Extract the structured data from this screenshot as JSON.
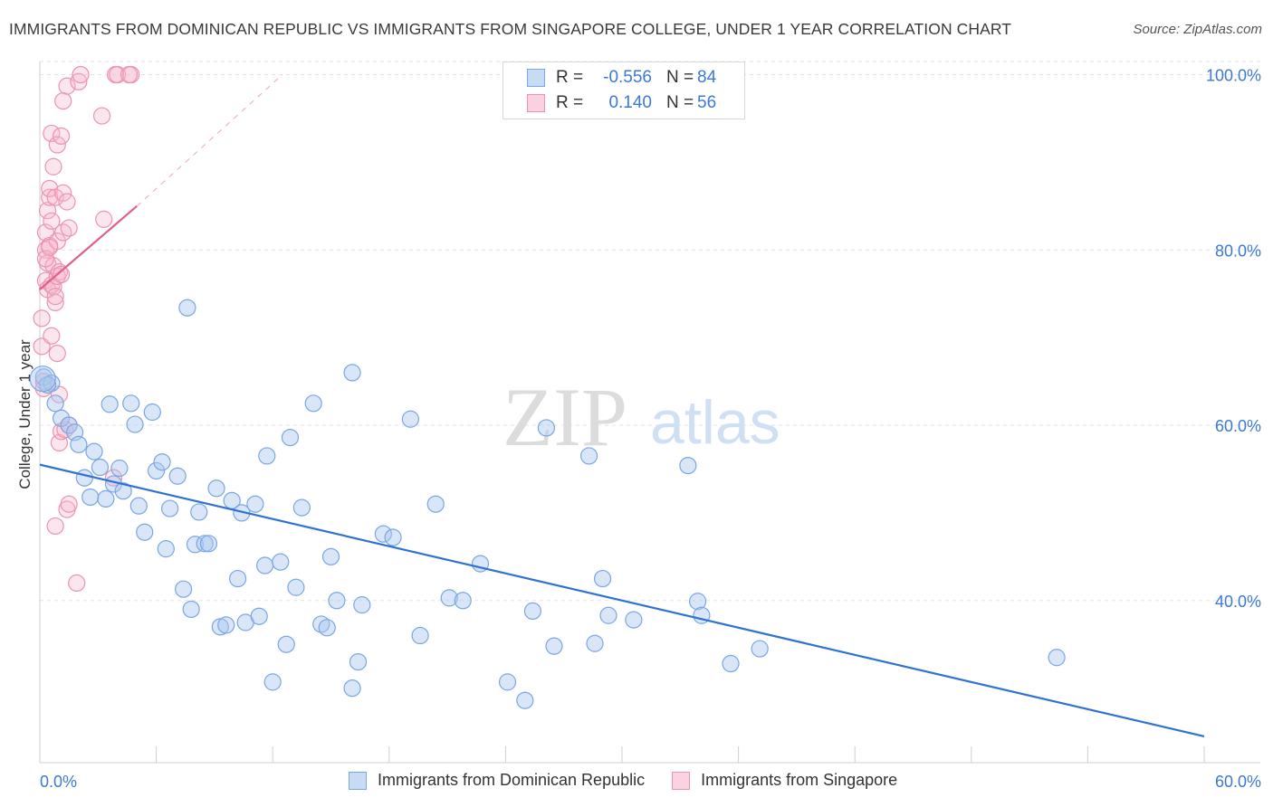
{
  "title": "IMMIGRANTS FROM DOMINICAN REPUBLIC VS IMMIGRANTS FROM SINGAPORE COLLEGE, UNDER 1 YEAR CORRELATION CHART",
  "source": "Source: ZipAtlas.com",
  "watermark": {
    "zip": "ZIP",
    "atlas": "atlas"
  },
  "legend": {
    "rows": [
      {
        "r_label": "R =",
        "r_value": "-0.556",
        "n_label": "N =",
        "n_value": "84",
        "color": "#a9c8f0"
      },
      {
        "r_label": "R =",
        "r_value": "0.140",
        "n_label": "N =",
        "n_value": "56",
        "color": "#f7b6cb"
      }
    ]
  },
  "bottom_legend": [
    {
      "label": "Immigrants from Dominican Republic",
      "color": "#a9c8f0"
    },
    {
      "label": "Immigrants from Singapore",
      "color": "#f7b6cb"
    }
  ],
  "chart_data": {
    "type": "scatter",
    "title": "IMMIGRANTS FROM DOMINICAN REPUBLIC VS IMMIGRANTS FROM SINGAPORE COLLEGE, UNDER 1 YEAR CORRELATION CHART",
    "xlabel": "",
    "ylabel": "College, Under 1 year",
    "xlim": [
      0,
      60
    ],
    "ylim": [
      21.5,
      101.5
    ],
    "x_tick_labels": [
      "0.0%",
      "60.0%"
    ],
    "y_ticks": [
      40,
      60,
      80,
      100
    ],
    "y_tick_labels": [
      "40.0%",
      "60.0%",
      "80.0%",
      "100.0%"
    ],
    "grid": true,
    "series": [
      {
        "name": "Immigrants from Dominican Republic",
        "color": "#3b78d8",
        "fill": "#a9c8f0",
        "trend": {
          "x": [
            0,
            60
          ],
          "y": [
            55.5,
            24.5
          ]
        },
        "points": [
          [
            0.2,
            65.5
          ],
          [
            0.6,
            64.8
          ],
          [
            0.8,
            62.5
          ],
          [
            1.1,
            60.8
          ],
          [
            1.5,
            60.0
          ],
          [
            1.8,
            59.2
          ],
          [
            2.0,
            57.8
          ],
          [
            2.3,
            54.0
          ],
          [
            2.6,
            51.8
          ],
          [
            2.8,
            57.0
          ],
          [
            3.1,
            55.2
          ],
          [
            3.4,
            51.6
          ],
          [
            3.6,
            62.4
          ],
          [
            3.8,
            53.3
          ],
          [
            4.1,
            55.1
          ],
          [
            4.3,
            52.5
          ],
          [
            4.7,
            62.5
          ],
          [
            4.9,
            60.1
          ],
          [
            5.1,
            50.8
          ],
          [
            5.4,
            47.8
          ],
          [
            5.8,
            61.5
          ],
          [
            6.0,
            54.8
          ],
          [
            6.3,
            55.8
          ],
          [
            6.5,
            45.9
          ],
          [
            6.7,
            50.5
          ],
          [
            7.1,
            54.2
          ],
          [
            7.4,
            41.3
          ],
          [
            7.6,
            73.4
          ],
          [
            7.8,
            39.0
          ],
          [
            8.0,
            46.4
          ],
          [
            8.2,
            50.1
          ],
          [
            8.5,
            46.5
          ],
          [
            8.7,
            46.5
          ],
          [
            9.1,
            52.8
          ],
          [
            9.3,
            37.0
          ],
          [
            9.6,
            37.2
          ],
          [
            9.9,
            51.4
          ],
          [
            10.2,
            42.5
          ],
          [
            10.4,
            50.0
          ],
          [
            10.6,
            37.5
          ],
          [
            11.1,
            51.0
          ],
          [
            11.3,
            38.2
          ],
          [
            11.6,
            44.0
          ],
          [
            11.7,
            56.5
          ],
          [
            12.0,
            30.7
          ],
          [
            12.4,
            44.4
          ],
          [
            12.7,
            35.0
          ],
          [
            12.9,
            58.6
          ],
          [
            13.2,
            41.5
          ],
          [
            13.5,
            50.6
          ],
          [
            14.1,
            62.5
          ],
          [
            14.5,
            37.3
          ],
          [
            14.8,
            36.9
          ],
          [
            15.0,
            45.0
          ],
          [
            15.3,
            40.0
          ],
          [
            16.1,
            66.0
          ],
          [
            16.4,
            33.0
          ],
          [
            16.6,
            39.5
          ],
          [
            16.1,
            30.0
          ],
          [
            17.7,
            47.6
          ],
          [
            18.2,
            47.2
          ],
          [
            19.1,
            60.7
          ],
          [
            19.6,
            36.0
          ],
          [
            20.4,
            51.0
          ],
          [
            21.1,
            40.3
          ],
          [
            21.8,
            40.0
          ],
          [
            22.7,
            44.2
          ],
          [
            24.1,
            30.7
          ],
          [
            25.0,
            28.6
          ],
          [
            25.4,
            38.8
          ],
          [
            26.1,
            59.7
          ],
          [
            26.5,
            34.8
          ],
          [
            28.3,
            56.5
          ],
          [
            28.6,
            35.1
          ],
          [
            29.0,
            42.5
          ],
          [
            29.3,
            38.3
          ],
          [
            30.6,
            37.8
          ],
          [
            33.4,
            55.4
          ],
          [
            33.9,
            39.9
          ],
          [
            34.1,
            38.3
          ],
          [
            35.6,
            32.8
          ],
          [
            37.1,
            34.5
          ],
          [
            52.4,
            33.5
          ],
          [
            0.4,
            64.6
          ]
        ]
      },
      {
        "name": "Immigrants from Singapore",
        "color": "#e0608a",
        "fill": "#f7b6cb",
        "trend": {
          "x": [
            0,
            5
          ],
          "y": [
            75.5,
            85.0
          ]
        },
        "trend_dashed": {
          "x": [
            5,
            12.5
          ],
          "y": [
            85.0,
            100.0
          ]
        },
        "points": [
          [
            0.1,
            72.2
          ],
          [
            0.1,
            69.0
          ],
          [
            0.2,
            65.0
          ],
          [
            0.2,
            64.2
          ],
          [
            0.3,
            76.5
          ],
          [
            0.3,
            80.0
          ],
          [
            0.3,
            82.0
          ],
          [
            0.4,
            84.5
          ],
          [
            0.4,
            75.5
          ],
          [
            0.4,
            78.5
          ],
          [
            0.5,
            80.5
          ],
          [
            0.5,
            86.0
          ],
          [
            0.5,
            87.0
          ],
          [
            0.6,
            70.2
          ],
          [
            0.6,
            76.0
          ],
          [
            0.6,
            83.3
          ],
          [
            0.6,
            93.3
          ],
          [
            0.7,
            75.8
          ],
          [
            0.7,
            89.5
          ],
          [
            0.7,
            78.2
          ],
          [
            0.8,
            74.0
          ],
          [
            0.8,
            74.7
          ],
          [
            0.8,
            86.0
          ],
          [
            0.8,
            48.5
          ],
          [
            0.9,
            92.0
          ],
          [
            0.9,
            81.0
          ],
          [
            0.9,
            77.0
          ],
          [
            0.9,
            68.2
          ],
          [
            1.0,
            63.5
          ],
          [
            1.0,
            58.0
          ],
          [
            1.0,
            77.5
          ],
          [
            1.1,
            93.0
          ],
          [
            1.1,
            77.2
          ],
          [
            1.1,
            59.3
          ],
          [
            1.2,
            97.0
          ],
          [
            1.2,
            86.5
          ],
          [
            1.2,
            82.0
          ],
          [
            1.3,
            59.5
          ],
          [
            1.4,
            85.5
          ],
          [
            1.4,
            98.7
          ],
          [
            1.4,
            50.4
          ],
          [
            1.5,
            60.0
          ],
          [
            1.5,
            82.5
          ],
          [
            1.5,
            51.0
          ],
          [
            1.9,
            42.0
          ],
          [
            2.0,
            99.2
          ],
          [
            2.1,
            100.0
          ],
          [
            3.2,
            95.3
          ],
          [
            3.3,
            83.5
          ],
          [
            3.8,
            54.0
          ],
          [
            3.9,
            100.0
          ],
          [
            4.0,
            100.0
          ],
          [
            4.7,
            100.0
          ],
          [
            4.6,
            100.0
          ],
          [
            0.3,
            79.0
          ],
          [
            0.5,
            80.3
          ]
        ]
      }
    ]
  }
}
